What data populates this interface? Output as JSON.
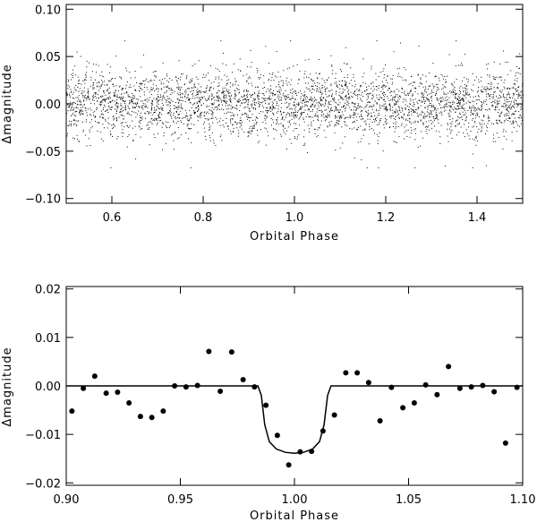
{
  "chart_data": [
    {
      "type": "scatter",
      "xlabel": "Orbital Phase",
      "ylabel": "Δmagnitude",
      "xlim": [
        0.5,
        1.5
      ],
      "ylim": [
        -0.105,
        0.105
      ],
      "xticks": [
        "0.6",
        "0.8",
        "1.0",
        "1.2",
        "1.4"
      ],
      "xtick_values": [
        0.6,
        0.8,
        1.0,
        1.2,
        1.4
      ],
      "yticks": [
        "0.10",
        "0.05",
        "0.00",
        "−0.05",
        "−0.10"
      ],
      "ytick_values": [
        0.1,
        0.05,
        0.0,
        -0.05,
        -0.1
      ],
      "grid": false,
      "series": [
        {
          "marker": "dot",
          "points_description_scatter_density": "dense cloud centered at 0.00 with spread about ±0.03",
          "points": [
            [
              0.5,
              0.012
            ],
            [
              0.51,
              -0.018
            ],
            [
              0.52,
              0.031
            ],
            [
              0.53,
              -0.006
            ],
            [
              0.54,
              0.022
            ],
            [
              0.55,
              -0.027
            ],
            [
              0.56,
              0.004
            ],
            [
              0.57,
              0.041
            ],
            [
              0.58,
              -0.011
            ],
            [
              0.59,
              0.016
            ],
            [
              0.6,
              -0.034
            ],
            [
              0.61,
              0.008
            ],
            [
              0.62,
              0.027
            ],
            [
              0.63,
              -0.019
            ],
            [
              0.64,
              0.002
            ],
            [
              0.65,
              0.035
            ],
            [
              0.66,
              -0.024
            ],
            [
              0.67,
              0.013
            ],
            [
              0.68,
              -0.008
            ],
            [
              0.69,
              0.021
            ],
            [
              0.7,
              -0.031
            ],
            [
              0.71,
              0.006
            ],
            [
              0.72,
              0.018
            ],
            [
              0.73,
              -0.015
            ],
            [
              0.74,
              0.028
            ],
            [
              0.75,
              -0.004
            ],
            [
              0.76,
              0.011
            ],
            [
              0.77,
              -0.026
            ],
            [
              0.78,
              0.019
            ],
            [
              0.79,
              0.003
            ],
            [
              0.8,
              -0.021
            ],
            [
              0.81,
              0.033
            ],
            [
              0.82,
              -0.012
            ],
            [
              0.83,
              0.007
            ],
            [
              0.84,
              -0.038
            ],
            [
              0.85,
              0.014
            ],
            [
              0.86,
              -0.005
            ],
            [
              0.87,
              0.024
            ],
            [
              0.88,
              -0.017
            ],
            [
              0.89,
              0.009
            ],
            [
              0.9,
              0.029
            ],
            [
              0.91,
              -0.023
            ],
            [
              0.92,
              0.001
            ],
            [
              0.93,
              0.017
            ],
            [
              0.94,
              -0.029
            ],
            [
              0.95,
              0.012
            ],
            [
              0.96,
              -0.009
            ],
            [
              0.97,
              0.025
            ],
            [
              0.98,
              -0.014
            ],
            [
              0.99,
              0.005
            ],
            [
              1.0,
              -0.036
            ],
            [
              1.01,
              -0.022
            ],
            [
              1.02,
              0.008
            ],
            [
              1.03,
              -0.013
            ],
            [
              1.04,
              0.019
            ],
            [
              1.05,
              -0.027
            ],
            [
              1.06,
              0.004
            ],
            [
              1.07,
              0.026
            ],
            [
              1.08,
              -0.018
            ],
            [
              1.09,
              0.011
            ],
            [
              1.1,
              0.037
            ],
            [
              1.11,
              -0.007
            ],
            [
              1.12,
              0.022
            ],
            [
              1.13,
              -0.025
            ],
            [
              1.14,
              0.014
            ],
            [
              1.15,
              0.048
            ],
            [
              1.16,
              -0.012
            ],
            [
              1.17,
              0.006
            ],
            [
              1.18,
              -0.032
            ],
            [
              1.19,
              0.018
            ],
            [
              1.2,
              -0.003
            ],
            [
              1.21,
              0.027
            ],
            [
              1.22,
              -0.016
            ],
            [
              1.23,
              0.009
            ],
            [
              1.24,
              -0.024
            ],
            [
              1.25,
              0.021
            ],
            [
              1.26,
              0.002
            ],
            [
              1.27,
              -0.019
            ],
            [
              1.28,
              0.031
            ],
            [
              1.29,
              -0.008
            ],
            [
              1.3,
              0.015
            ],
            [
              1.31,
              -0.028
            ],
            [
              1.32,
              0.007
            ],
            [
              1.33,
              0.023
            ],
            [
              1.34,
              -0.013
            ],
            [
              1.35,
              0.018
            ],
            [
              1.36,
              -0.021
            ],
            [
              1.37,
              0.004
            ],
            [
              1.38,
              0.026
            ],
            [
              1.39,
              -0.011
            ],
            [
              1.4,
              0.013
            ],
            [
              1.41,
              -0.025
            ],
            [
              1.42,
              0.008
            ],
            [
              1.43,
              0.019
            ],
            [
              1.44,
              -0.006
            ],
            [
              1.45,
              0.029
            ],
            [
              1.46,
              -0.017
            ],
            [
              1.47,
              0.003
            ],
            [
              1.48,
              0.022
            ],
            [
              1.49,
              -0.014
            ],
            [
              1.5,
              0.01
            ]
          ]
        }
      ]
    },
    {
      "type": "scatter",
      "xlabel": "Orbital Phase",
      "ylabel": "Δmagnitude",
      "xlim": [
        0.9,
        1.1
      ],
      "ylim": [
        -0.0205,
        0.0205
      ],
      "xticks": [
        "0.90",
        "0.95",
        "1.00",
        "1.05",
        "1.10"
      ],
      "xtick_values": [
        0.9,
        0.95,
        1.0,
        1.05,
        1.1
      ],
      "yticks": [
        "0.02",
        "0.01",
        "0.00",
        "−0.01",
        "−0.02"
      ],
      "ytick_values": [
        0.02,
        0.01,
        0.0,
        -0.01,
        -0.02
      ],
      "grid": false,
      "series": [
        {
          "marker": "filled-circle",
          "points": [
            [
              0.9025,
              -0.0052
            ],
            [
              0.9075,
              -0.0005
            ],
            [
              0.9125,
              0.002
            ],
            [
              0.9175,
              -0.0015
            ],
            [
              0.9225,
              -0.0013
            ],
            [
              0.9275,
              -0.0035
            ],
            [
              0.9325,
              -0.0063
            ],
            [
              0.9375,
              -0.0065
            ],
            [
              0.9425,
              -0.0052
            ],
            [
              0.9475,
              0.0
            ],
            [
              0.9525,
              -0.0002
            ],
            [
              0.9575,
              0.0001
            ],
            [
              0.9625,
              0.0071
            ],
            [
              0.9675,
              -0.0011
            ],
            [
              0.9725,
              0.007
            ],
            [
              0.9775,
              0.0013
            ],
            [
              0.9825,
              -0.0002
            ],
            [
              0.9875,
              -0.004
            ],
            [
              0.9925,
              -0.0102
            ],
            [
              0.9975,
              -0.0163
            ],
            [
              1.0025,
              -0.0136
            ],
            [
              1.0075,
              -0.0135
            ],
            [
              1.0125,
              -0.0093
            ],
            [
              1.0175,
              -0.006
            ],
            [
              1.0225,
              0.0027
            ],
            [
              1.0275,
              0.0027
            ],
            [
              1.0325,
              0.0007
            ],
            [
              1.0375,
              -0.0072
            ],
            [
              1.0425,
              -0.0003
            ],
            [
              1.0475,
              -0.0045
            ],
            [
              1.0525,
              -0.0035
            ],
            [
              1.0575,
              0.0002
            ],
            [
              1.0625,
              -0.0018
            ],
            [
              1.0675,
              0.004
            ],
            [
              1.0725,
              -0.0005
            ],
            [
              1.0775,
              -0.0002
            ],
            [
              1.0825,
              0.0001
            ],
            [
              1.0875,
              -0.0012
            ],
            [
              1.0925,
              -0.0118
            ],
            [
              1.0975,
              -0.0003
            ]
          ]
        },
        {
          "marker": "line",
          "points": [
            [
              0.9,
              0.0
            ],
            [
              0.984,
              0.0
            ],
            [
              0.9855,
              -0.002
            ],
            [
              0.987,
              -0.008
            ],
            [
              0.989,
              -0.0115
            ],
            [
              0.992,
              -0.013
            ],
            [
              0.996,
              -0.0137
            ],
            [
              1.0,
              -0.0139
            ],
            [
              1.004,
              -0.0137
            ],
            [
              1.008,
              -0.013
            ],
            [
              1.011,
              -0.0115
            ],
            [
              1.013,
              -0.008
            ],
            [
              1.0145,
              -0.002
            ],
            [
              1.016,
              0.0
            ],
            [
              1.1,
              0.0
            ]
          ]
        }
      ]
    }
  ]
}
